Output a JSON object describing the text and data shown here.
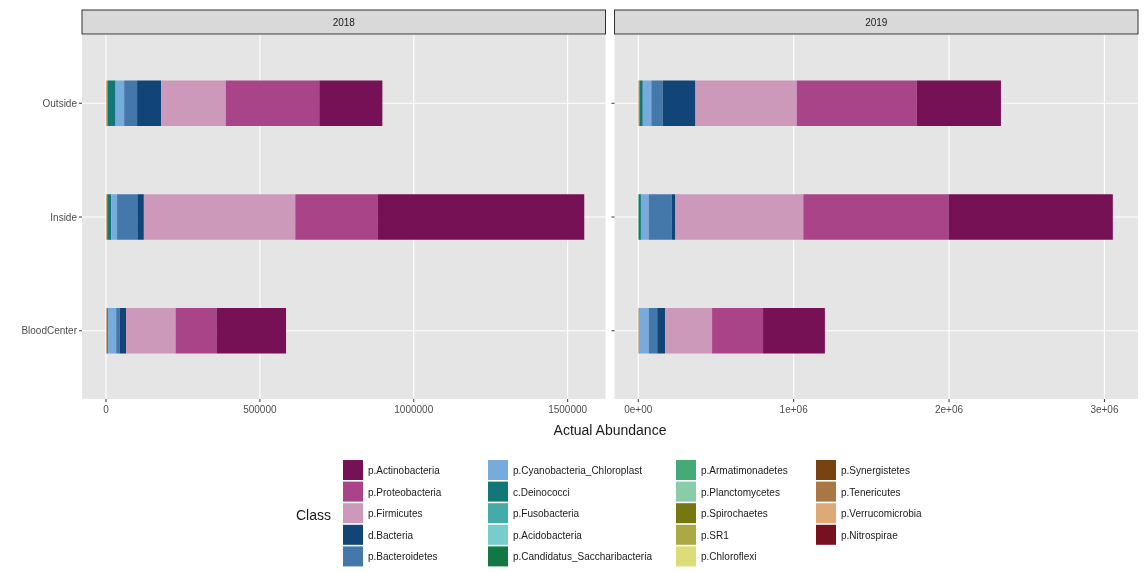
{
  "chart_data": [
    {
      "type": "bar",
      "orientation": "horizontal",
      "stacked": true,
      "title": "2018",
      "xlabel": "Actual Abundance",
      "legend_title": "Class",
      "legend": "bottom",
      "grid": true,
      "categories": [
        "Outside",
        "Inside",
        "BloodCenter"
      ],
      "xlim": [
        -78000,
        1623000
      ],
      "xticks": [
        0,
        500000,
        1000000,
        1500000
      ],
      "series": [
        {
          "name": "p.Nitrospirae",
          "color": "#771122",
          "values": [
            0,
            0,
            0
          ]
        },
        {
          "name": "p.Verrucomicrobia",
          "color": "#ddaa77",
          "values": [
            3000,
            4000,
            3000
          ]
        },
        {
          "name": "p.Tenericutes",
          "color": "#aa7744",
          "values": [
            0,
            0,
            0
          ]
        },
        {
          "name": "p.Synergistetes",
          "color": "#774411",
          "values": [
            0,
            0,
            0
          ]
        },
        {
          "name": "p.Chloroflexi",
          "color": "#dddd77",
          "values": [
            0,
            0,
            0
          ]
        },
        {
          "name": "p.SR1",
          "color": "#aaaa44",
          "values": [
            0,
            0,
            0
          ]
        },
        {
          "name": "p.Spirochaetes",
          "color": "#777711",
          "values": [
            0,
            0,
            0
          ]
        },
        {
          "name": "p.Planctomycetes",
          "color": "#88ccaa",
          "values": [
            0,
            0,
            0
          ]
        },
        {
          "name": "p.Armatimonadetes",
          "color": "#44aa77",
          "values": [
            3000,
            0,
            0
          ]
        },
        {
          "name": "p.Candidatus_Saccharibacteria",
          "color": "#117744",
          "values": [
            0,
            0,
            0
          ]
        },
        {
          "name": "p.Acidobacteria",
          "color": "#77cccc",
          "values": [
            0,
            0,
            0
          ]
        },
        {
          "name": "p.Fusobacteria",
          "color": "#44aaaa",
          "values": [
            0,
            0,
            0
          ]
        },
        {
          "name": "c.Deinococci",
          "color": "#117777",
          "values": [
            25000,
            13000,
            3000
          ]
        },
        {
          "name": "p.Cyanobacteria_Chloroplast",
          "color": "#77aadd",
          "values": [
            28000,
            19000,
            27000
          ]
        },
        {
          "name": "p.Bacteroidetes",
          "color": "#4477aa",
          "values": [
            42000,
            66000,
            11000
          ]
        },
        {
          "name": "d.Bacteria",
          "color": "#114477",
          "values": [
            78000,
            21000,
            21000
          ]
        },
        {
          "name": "p.Firmicutes",
          "color": "#cc99bb",
          "values": [
            210000,
            492000,
            161000
          ]
        },
        {
          "name": "p.Proteobacteria",
          "color": "#aa4488",
          "values": [
            304000,
            267000,
            133000
          ]
        },
        {
          "name": "p.Actinobacteria",
          "color": "#771155",
          "values": [
            205000,
            672000,
            226000
          ]
        }
      ]
    },
    {
      "type": "bar",
      "orientation": "horizontal",
      "stacked": true,
      "title": "2019",
      "grid": true,
      "tick_labels": "x",
      "xlim": [
        -153000,
        3216000
      ],
      "xticks": [
        {
          "value": 0,
          "label": "0e+00"
        },
        {
          "value": 1000000,
          "label": "1e+06"
        },
        {
          "value": 2000000,
          "label": "2e+06"
        },
        {
          "value": 3000000,
          "label": "3e+06"
        }
      ],
      "series": [
        {
          "color": "#771122",
          "values": [
            0,
            0,
            0
          ]
        },
        {
          "color": "#ddaa77",
          "values": [
            4000,
            0,
            4000
          ]
        },
        {
          "color": "#aa7744",
          "values": [
            0,
            0,
            0
          ]
        },
        {
          "color": "#774411",
          "values": [
            0,
            0,
            0
          ]
        },
        {
          "color": "#dddd77",
          "values": [
            0,
            0,
            0
          ]
        },
        {
          "color": "#aaaa44",
          "values": [
            0,
            0,
            0
          ]
        },
        {
          "color": "#777711",
          "values": [
            0,
            0,
            0
          ]
        },
        {
          "color": "#88ccaa",
          "values": [
            0,
            0,
            0
          ]
        },
        {
          "color": "#44aa77",
          "values": [
            4000,
            4000,
            0
          ]
        },
        {
          "color": "#117744",
          "values": [
            0,
            0,
            0
          ]
        },
        {
          "color": "#77cccc",
          "values": [
            0,
            0,
            0
          ]
        },
        {
          "color": "#44aaaa",
          "values": [
            0,
            0,
            0
          ]
        },
        {
          "color": "#117777",
          "values": [
            21000,
            13000,
            4000
          ]
        },
        {
          "color": "#77aadd",
          "values": [
            55000,
            50000,
            59000
          ]
        },
        {
          "color": "#4477aa",
          "values": [
            74000,
            147000,
            55000
          ]
        },
        {
          "color": "#114477",
          "values": [
            210000,
            25000,
            50000
          ]
        },
        {
          "color": "#cc99bb",
          "values": [
            652000,
            823000,
            303000
          ]
        },
        {
          "color": "#aa4488",
          "values": [
            772000,
            934000,
            328000
          ]
        },
        {
          "color": "#771155",
          "values": [
            542000,
            1058000,
            398000
          ]
        }
      ]
    }
  ]
}
